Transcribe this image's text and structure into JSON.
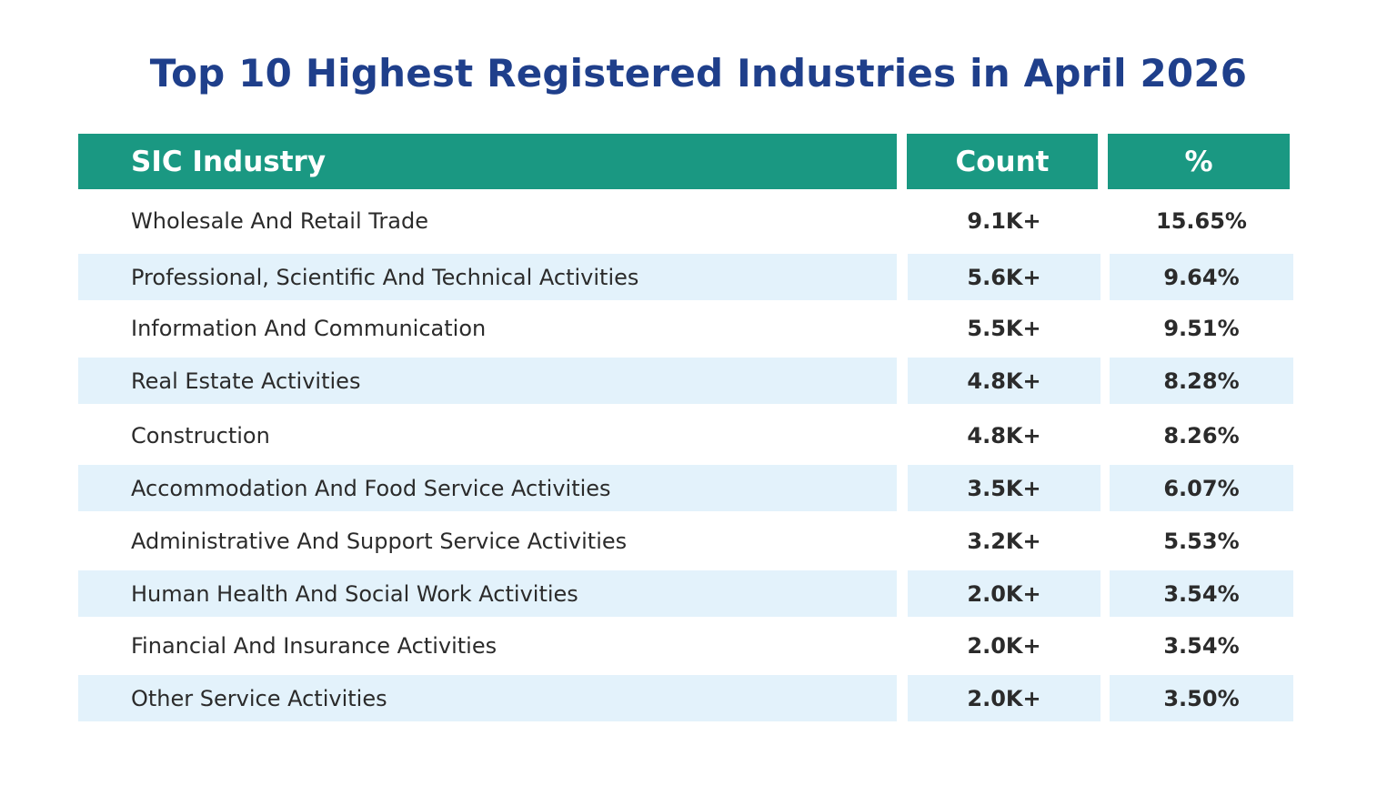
{
  "title": "Top 10 Highest Registered Industries in April 2026",
  "table": {
    "headers": {
      "industry": "SIC Industry",
      "count": "Count",
      "percent": "%"
    },
    "rows": [
      {
        "industry": "Wholesale And Retail Trade",
        "count": "9.1K+",
        "percent": "15.65%"
      },
      {
        "industry": "Professional, Scientific And Technical Activities",
        "count": "5.6K+",
        "percent": "9.64%"
      },
      {
        "industry": "Information And Communication",
        "count": "5.5K+",
        "percent": "9.51%"
      },
      {
        "industry": "Real Estate Activities",
        "count": "4.8K+",
        "percent": "8.28%"
      },
      {
        "industry": "Construction",
        "count": "4.8K+",
        "percent": "8.26%"
      },
      {
        "industry": "Accommodation And Food Service Activities",
        "count": "3.5K+",
        "percent": "6.07%"
      },
      {
        "industry": "Administrative And Support Service Activities",
        "count": "3.2K+",
        "percent": "5.53%"
      },
      {
        "industry": "Human Health And Social Work Activities",
        "count": "2.0K+",
        "percent": "3.54%"
      },
      {
        "industry": "Financial And Insurance Activities",
        "count": "2.0K+",
        "percent": "3.54%"
      },
      {
        "industry": "Other Service Activities",
        "count": "2.0K+",
        "percent": "3.50%"
      }
    ]
  },
  "colors": {
    "title": "#1f3f8b",
    "header_bg": "#1a9882",
    "header_text": "#ffffff",
    "band_bg": "#e3f2fb",
    "body_text": "#2b2b2b"
  }
}
